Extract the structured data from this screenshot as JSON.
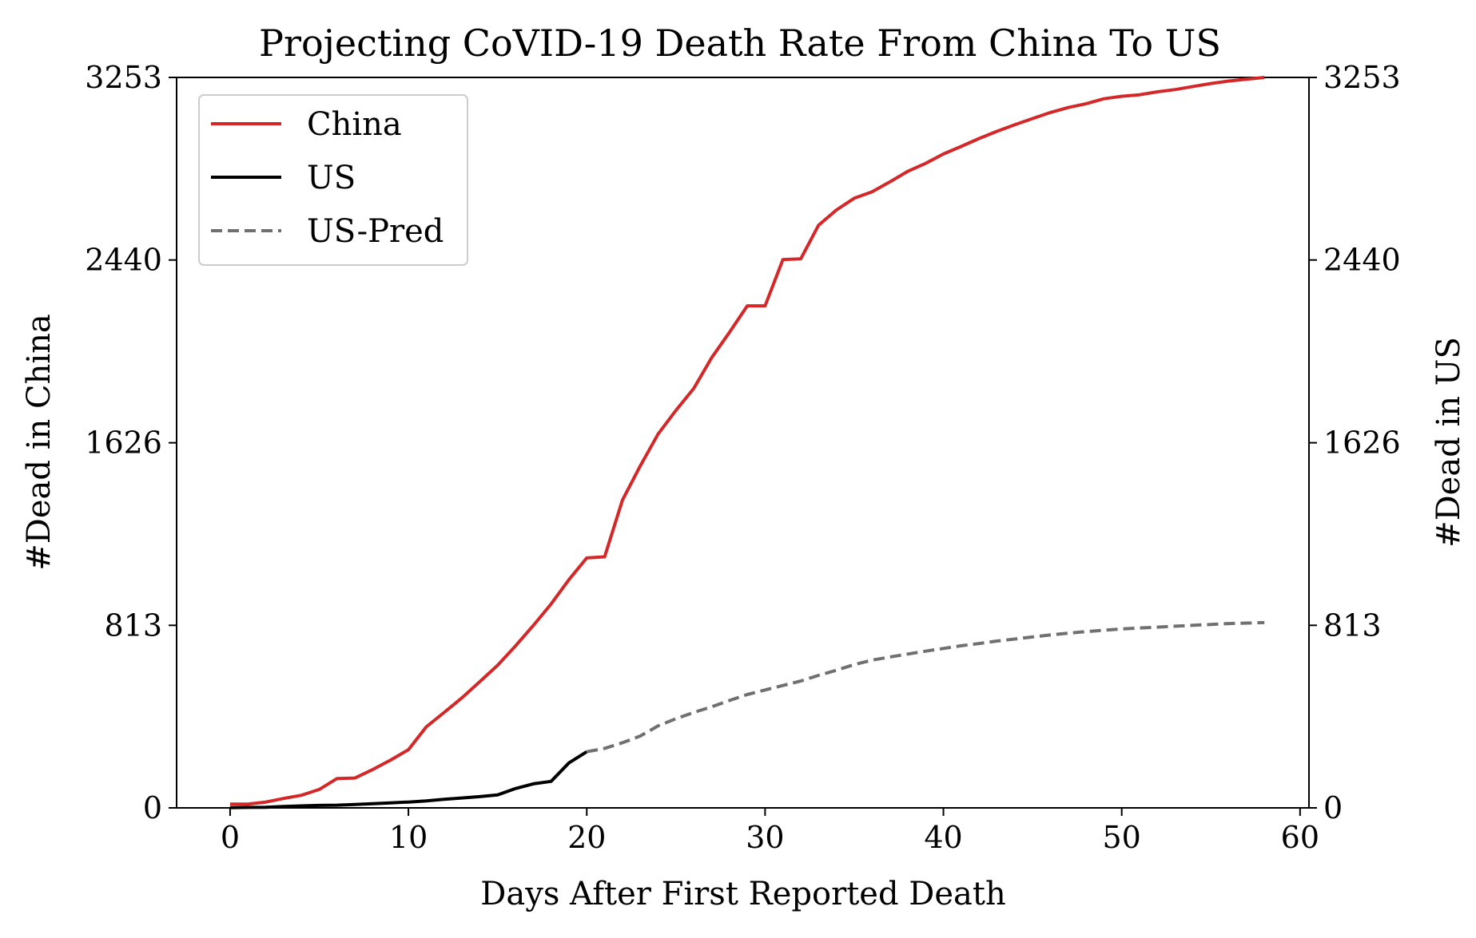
{
  "chart_data": {
    "type": "line",
    "title": "Projecting CoVID-19 Death Rate From China To US",
    "xlabel": "Days After First Reported Death",
    "ylabel_left": "#Dead in China",
    "ylabel_right": "#Dead in US",
    "xlim": [
      -3,
      60.5
    ],
    "ylim": [
      0,
      3253
    ],
    "x_ticks": [
      0,
      10,
      20,
      30,
      40,
      50,
      60
    ],
    "y_ticks": [
      0,
      813,
      1626,
      2440,
      3253
    ],
    "grid": false,
    "legend": {
      "placement": "top-left",
      "entries": [
        "China",
        "US",
        "US-Pred"
      ]
    },
    "series": [
      {
        "name": "China",
        "color": "#d62728",
        "style": "solid",
        "x": [
          0,
          1,
          2,
          3,
          4,
          5,
          6,
          7,
          8,
          9,
          10,
          11,
          12,
          13,
          14,
          15,
          16,
          17,
          18,
          19,
          20,
          21,
          22,
          23,
          24,
          25,
          26,
          27,
          28,
          29,
          30,
          31,
          32,
          33,
          34,
          35,
          36,
          37,
          38,
          39,
          40,
          41,
          42,
          43,
          44,
          45,
          46,
          47,
          48,
          49,
          50,
          51,
          52,
          53,
          54,
          55,
          56,
          57,
          58
        ],
        "y": [
          17,
          17,
          26,
          42,
          56,
          82,
          131,
          133,
          171,
          213,
          259,
          361,
          425,
          490,
          562,
          635,
          721,
          812,
          908,
          1016,
          1113,
          1118,
          1371,
          1523,
          1665,
          1770,
          1868,
          2004,
          2118,
          2236,
          2236,
          2442,
          2445,
          2595,
          2663,
          2715,
          2744,
          2788,
          2835,
          2870,
          2912,
          2946,
          2981,
          3013,
          3042,
          3070,
          3097,
          3119,
          3136,
          3158,
          3169,
          3176,
          3189,
          3199,
          3213,
          3226,
          3237,
          3245,
          3253
        ]
      },
      {
        "name": "US",
        "color": "#000000",
        "style": "solid",
        "x": [
          0,
          1,
          2,
          3,
          4,
          5,
          6,
          7,
          8,
          9,
          10,
          11,
          12,
          13,
          14,
          15,
          16,
          17,
          18,
          19,
          20
        ],
        "y": [
          1,
          2,
          3,
          6,
          9,
          11,
          12,
          15,
          19,
          22,
          26,
          31,
          38,
          44,
          50,
          58,
          86,
          107,
          118,
          200,
          250
        ]
      },
      {
        "name": "US-Pred",
        "color": "#707070",
        "style": "dashed",
        "x": [
          20,
          21,
          22,
          23,
          24,
          25,
          26,
          27,
          28,
          29,
          30,
          31,
          32,
          33,
          34,
          35,
          36,
          37,
          38,
          39,
          40,
          41,
          42,
          43,
          44,
          45,
          46,
          47,
          48,
          49,
          50,
          51,
          52,
          53,
          54,
          55,
          56,
          57,
          58
        ],
        "y": [
          250,
          265,
          290,
          320,
          365,
          397,
          425,
          450,
          478,
          505,
          525,
          545,
          565,
          590,
          613,
          638,
          658,
          672,
          685,
          698,
          710,
          722,
          732,
          743,
          752,
          761,
          770,
          778,
          785,
          791,
          797,
          801,
          805,
          809,
          813,
          817,
          821,
          823,
          825
        ]
      }
    ]
  }
}
